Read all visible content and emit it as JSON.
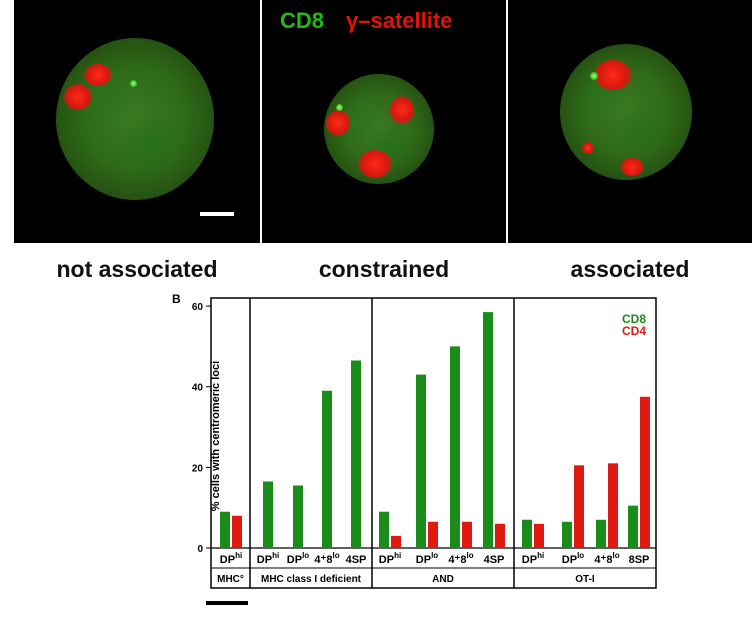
{
  "micro": {
    "legend_cd8": "CD8",
    "legend_gamma": "γ–satellite",
    "captions": [
      "not associated",
      "constrained",
      "associated"
    ]
  },
  "colors": {
    "cd8": "#1a8c1a",
    "cd4": "#e01a10"
  },
  "panel_label": "B",
  "chart_data": {
    "type": "bar",
    "ylabel": "% cells with centromeric loci",
    "ylim": [
      0,
      62
    ],
    "yticks": [
      0,
      20,
      40,
      60
    ],
    "legend": [
      {
        "name": "CD8",
        "color": "#1a8c1a"
      },
      {
        "name": "CD4",
        "color": "#e01a10"
      }
    ],
    "legend_position": "top-right",
    "groups": [
      {
        "name": "MHC°",
        "categories": [
          {
            "label": "DP",
            "sup": "hi",
            "cd8": 9,
            "cd4": 8
          }
        ]
      },
      {
        "name": "MHC class I deficient",
        "categories": [
          {
            "label": "DP",
            "sup": "hi",
            "cd8": 16.5,
            "cd4": null
          },
          {
            "label": "DP",
            "sup": "lo",
            "cd8": 15.5,
            "cd4": null
          },
          {
            "label": "4⁺8",
            "sup": "lo",
            "cd8": 39,
            "cd4": null
          },
          {
            "label": "4SP",
            "sup": "",
            "cd8": 46.5,
            "cd4": null
          }
        ]
      },
      {
        "name": "AND",
        "categories": [
          {
            "label": "DP",
            "sup": "hi",
            "cd8": 9,
            "cd4": 3
          },
          {
            "label": "DP",
            "sup": "lo",
            "cd8": 43,
            "cd4": 6.5
          },
          {
            "label": "4⁺8",
            "sup": "lo",
            "cd8": 50,
            "cd4": 6.5
          },
          {
            "label": "4SP",
            "sup": "",
            "cd8": 58.5,
            "cd4": 6
          }
        ]
      },
      {
        "name": "OT-I",
        "categories": [
          {
            "label": "DP",
            "sup": "hi",
            "cd8": 7,
            "cd4": 6
          },
          {
            "label": "DP",
            "sup": "lo",
            "cd8": 6.5,
            "cd4": 20.5
          },
          {
            "label": "4⁺8",
            "sup": "lo",
            "cd8": 7,
            "cd4": 21
          },
          {
            "label": "8SP",
            "sup": "",
            "cd8": 10.5,
            "cd4": 37.5
          }
        ]
      }
    ]
  }
}
